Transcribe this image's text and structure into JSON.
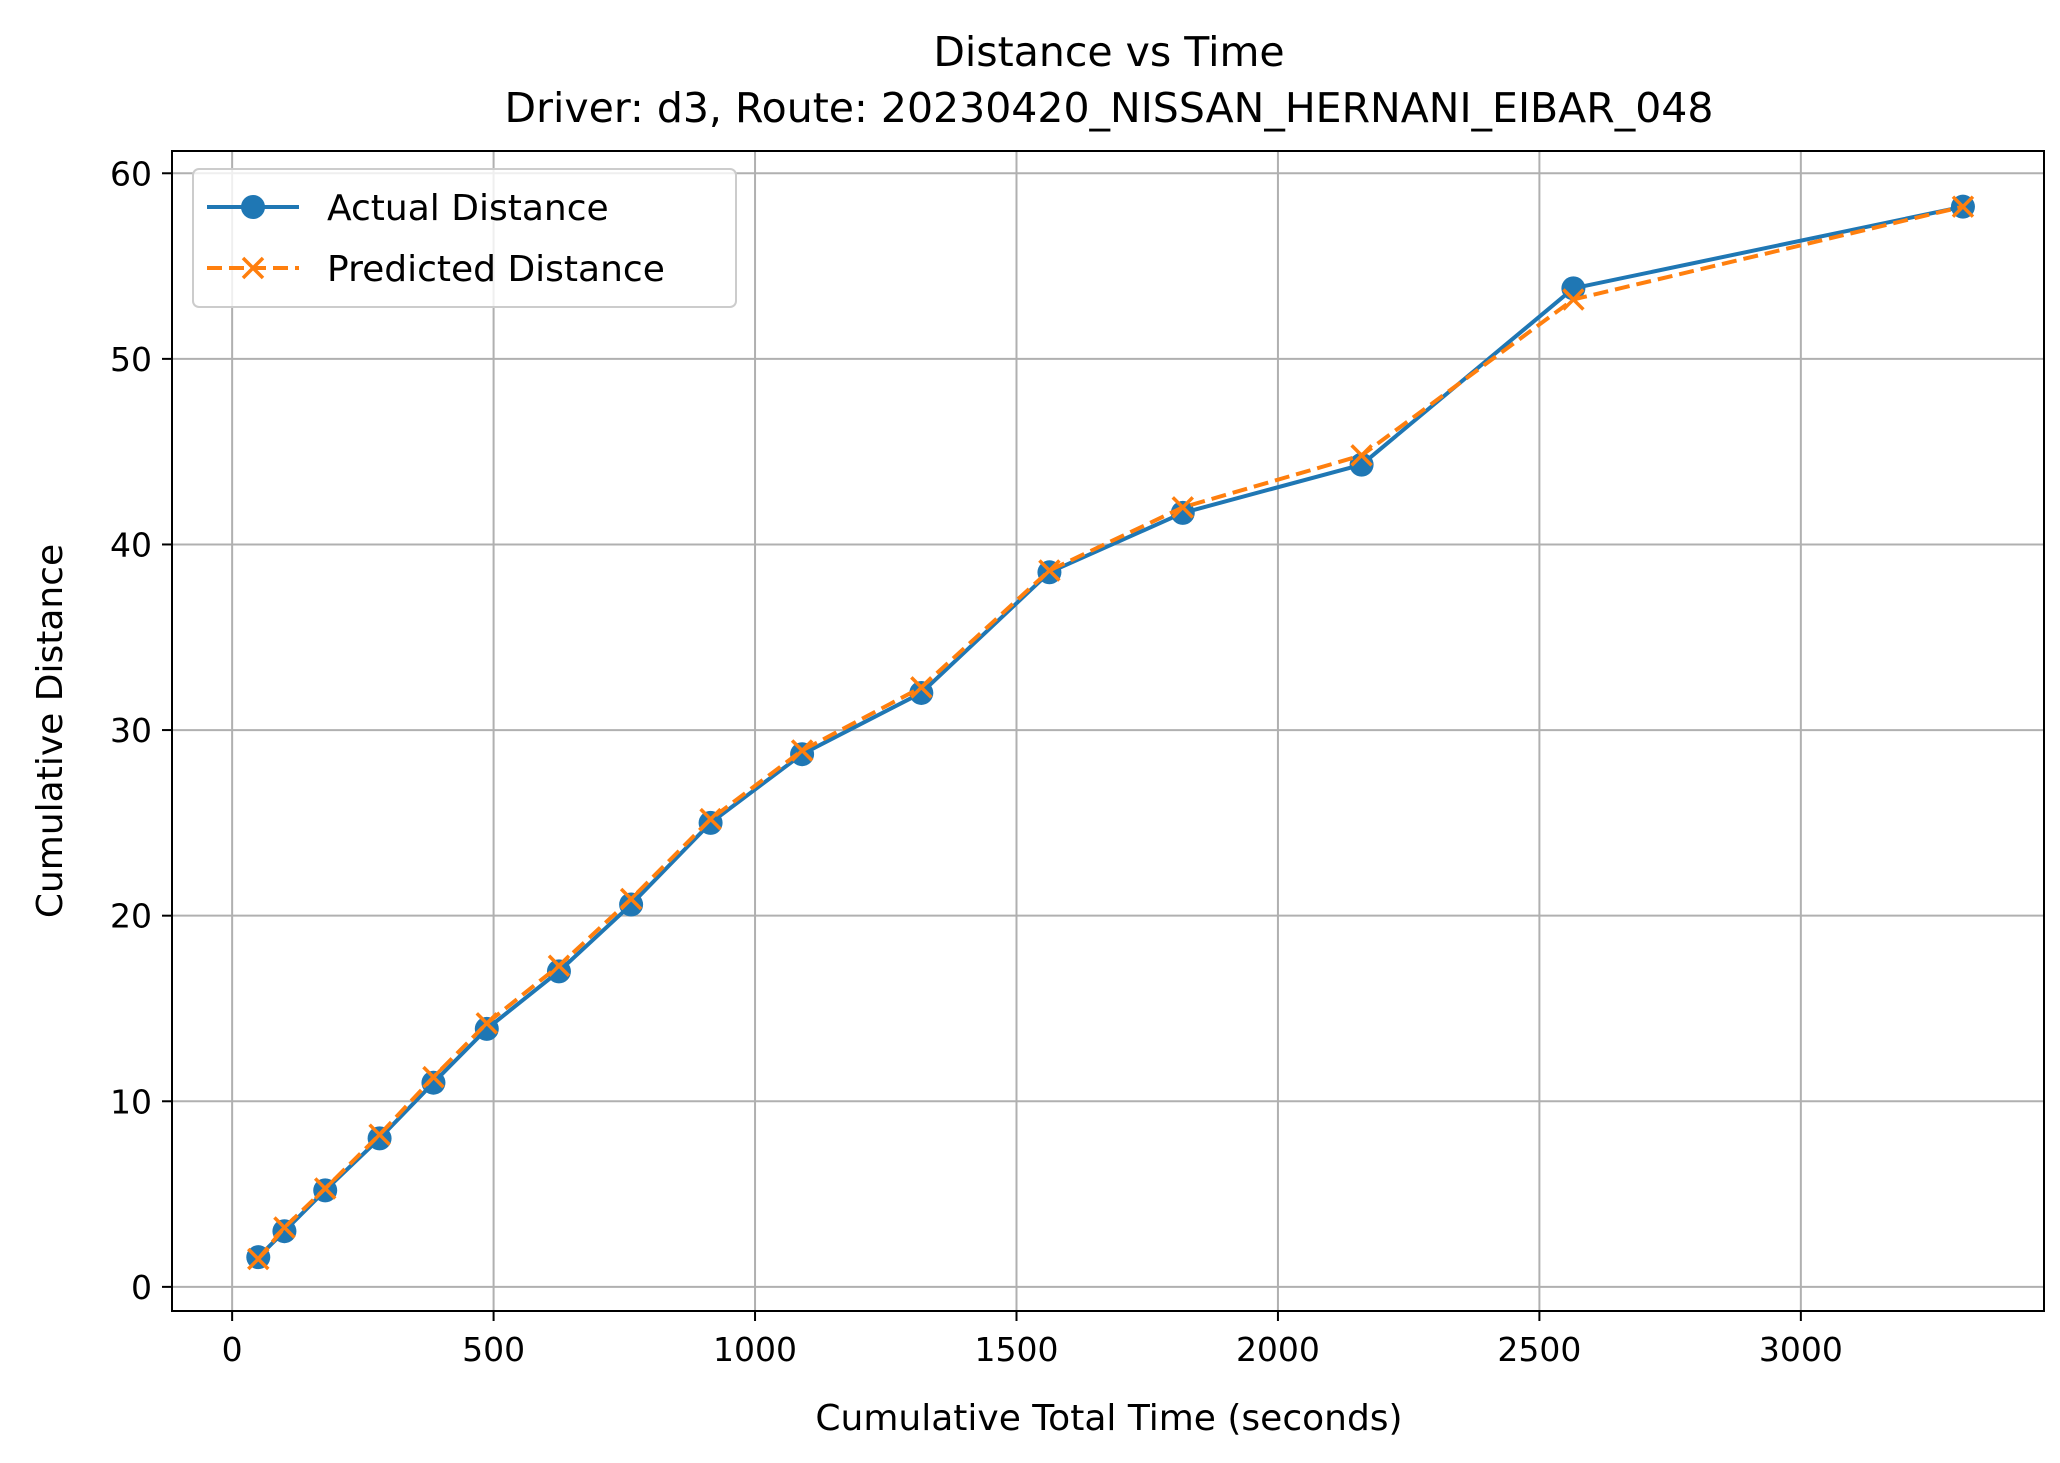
{
  "chart_data": {
    "type": "line",
    "title": "Distance vs Time",
    "subtitle": "Driver: d3, Route: 20230420_NISSAN_HERNANI_EIBAR_048",
    "xlabel": "Cumulative Total Time (seconds)",
    "ylabel": "Cumulative Distance",
    "xlim": [
      -115,
      3465
    ],
    "ylim": [
      -1.3,
      61.2
    ],
    "xticks": [
      0,
      500,
      1000,
      1500,
      2000,
      2500,
      3000
    ],
    "yticks": [
      0,
      10,
      20,
      30,
      40,
      50,
      60
    ],
    "grid": true,
    "legend_position": "upper-left",
    "series": [
      {
        "name": "Actual Distance",
        "color": "#1f77b4",
        "line_style": "solid",
        "marker": "circle",
        "x": [
          50,
          100,
          178,
          282,
          385,
          487,
          625,
          763,
          915,
          1090,
          1318,
          1563,
          1818,
          2160,
          2565,
          3310
        ],
        "y": [
          1.6,
          3.0,
          5.2,
          8.0,
          11.0,
          13.9,
          17.0,
          20.6,
          25.0,
          28.7,
          32.0,
          38.5,
          41.7,
          44.3,
          53.8,
          58.2
        ]
      },
      {
        "name": "Predicted Distance",
        "color": "#ff7f0e",
        "line_style": "dashed",
        "marker": "x",
        "x": [
          50,
          100,
          178,
          282,
          385,
          487,
          625,
          763,
          915,
          1090,
          1318,
          1563,
          1818,
          2160,
          2565,
          3310
        ],
        "y": [
          1.5,
          3.2,
          5.3,
          8.2,
          11.3,
          14.2,
          17.3,
          20.9,
          25.2,
          28.9,
          32.3,
          38.6,
          42.0,
          44.8,
          53.2,
          58.2
        ]
      }
    ]
  }
}
